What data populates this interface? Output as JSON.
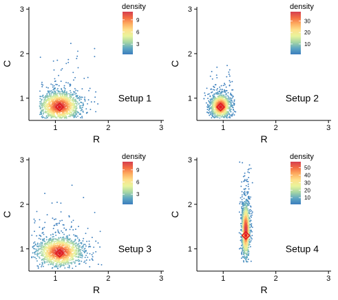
{
  "colors": {
    "ramp": [
      "#3b7dbd",
      "#5fa8c3",
      "#a7d6a4",
      "#e8f49c",
      "#fee08b",
      "#fdae61",
      "#f46d43",
      "#d53e4f"
    ],
    "axis": "#000000",
    "marker": "#e31a1c"
  },
  "chart_data": [
    {
      "type": "scatter",
      "title": "",
      "xlabel": "R",
      "ylabel": "C",
      "xlim": [
        0.5,
        3.05
      ],
      "ylim": [
        0.5,
        3.05
      ],
      "x_ticks": [
        1,
        2,
        3
      ],
      "y_ticks": [
        1,
        2,
        3
      ],
      "annotation": "Setup 1",
      "legend": {
        "title": "density",
        "min": 0.5,
        "max": 11,
        "ticks": [
          3,
          6,
          9
        ],
        "position": "top-right"
      },
      "cloud": {
        "center_x": 1.08,
        "center_y": 0.82,
        "spread_x": 0.2,
        "spread_y": 0.17,
        "x_range": [
          0.7,
          1.85
        ],
        "y_range": [
          0.55,
          2.35
        ],
        "n_points": 1400
      },
      "mode": {
        "x": 1.08,
        "y": 0.8
      }
    },
    {
      "type": "scatter",
      "title": "",
      "xlabel": "R",
      "ylabel": "C",
      "xlim": [
        0.5,
        3.05
      ],
      "ylim": [
        0.5,
        3.05
      ],
      "x_ticks": [
        1,
        2,
        3
      ],
      "y_ticks": [
        1,
        2,
        3
      ],
      "annotation": "Setup 2",
      "legend": {
        "title": "density",
        "min": 1,
        "max": 38,
        "ticks": [
          10,
          20,
          30
        ],
        "position": "top-right"
      },
      "cloud": {
        "center_x": 0.95,
        "center_y": 0.82,
        "spread_x": 0.1,
        "spread_y": 0.14,
        "x_range": [
          0.6,
          1.25
        ],
        "y_range": [
          0.55,
          2.0
        ],
        "n_points": 1100
      },
      "mode": {
        "x": 0.95,
        "y": 0.8
      }
    },
    {
      "type": "scatter",
      "title": "",
      "xlabel": "R",
      "ylabel": "C",
      "xlim": [
        0.5,
        3.05
      ],
      "ylim": [
        0.5,
        3.05
      ],
      "x_ticks": [
        1,
        2,
        3
      ],
      "y_ticks": [
        1,
        2,
        3
      ],
      "annotation": "Setup 3",
      "legend": {
        "title": "density",
        "min": 0.5,
        "max": 11,
        "ticks": [
          3,
          6,
          9
        ],
        "position": "top-right"
      },
      "cloud": {
        "center_x": 1.08,
        "center_y": 0.93,
        "spread_x": 0.22,
        "spread_y": 0.17,
        "x_range": [
          0.55,
          1.95
        ],
        "y_range": [
          0.55,
          2.6
        ],
        "n_points": 1400
      },
      "mode": {
        "x": 1.08,
        "y": 0.9
      }
    },
    {
      "type": "scatter",
      "title": "",
      "xlabel": "R",
      "ylabel": "C",
      "xlim": [
        0.5,
        3.05
      ],
      "ylim": [
        0.5,
        3.05
      ],
      "x_ticks": [
        1,
        2,
        3
      ],
      "y_ticks": [
        1,
        2,
        3
      ],
      "annotation": "Setup 4",
      "legend": {
        "title": "density",
        "min": 1,
        "max": 58,
        "ticks": [
          10,
          20,
          30,
          40,
          50
        ],
        "position": "top-right"
      },
      "cloud": {
        "center_x": 1.43,
        "center_y": 1.42,
        "spread_x": 0.04,
        "spread_y": 0.32,
        "x_range": [
          1.3,
          1.56
        ],
        "y_range": [
          0.7,
          2.95
        ],
        "n_points": 1100
      },
      "mode": {
        "x": 1.43,
        "y": 1.3
      }
    }
  ]
}
